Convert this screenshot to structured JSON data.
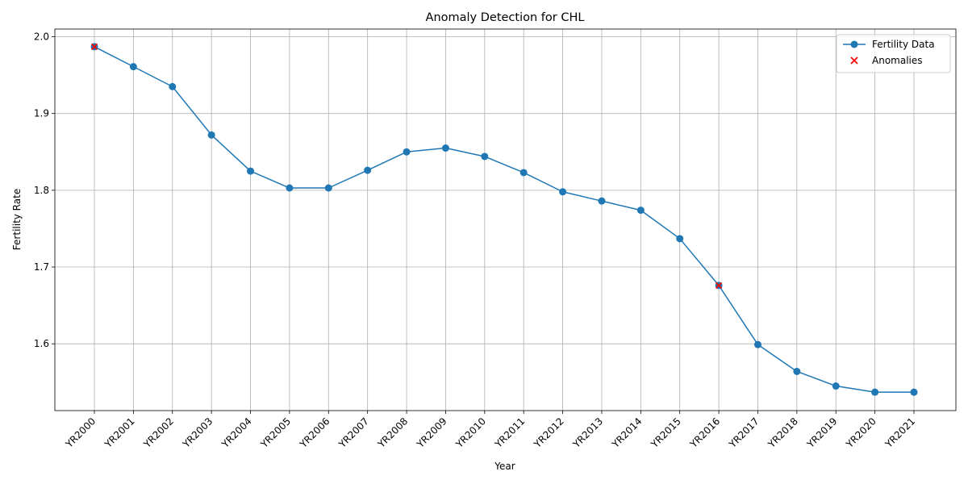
{
  "chart_data": {
    "type": "line",
    "title": "Anomaly Detection for CHL",
    "xlabel": "Year",
    "ylabel": "Fertility Rate",
    "categories": [
      "YR2000",
      "YR2001",
      "YR2002",
      "YR2003",
      "YR2004",
      "YR2005",
      "YR2006",
      "YR2007",
      "YR2008",
      "YR2009",
      "YR2010",
      "YR2011",
      "YR2012",
      "YR2013",
      "YR2014",
      "YR2015",
      "YR2016",
      "YR2017",
      "YR2018",
      "YR2019",
      "YR2020",
      "YR2021"
    ],
    "series": [
      {
        "name": "Fertility Data",
        "color": "#1f77b4",
        "marker": "circle",
        "values": [
          1.987,
          1.961,
          1.935,
          1.872,
          1.825,
          1.803,
          1.803,
          1.826,
          1.85,
          1.855,
          1.844,
          1.823,
          1.798,
          1.786,
          1.774,
          1.737,
          1.676,
          1.599,
          1.564,
          1.545,
          1.537,
          1.537
        ]
      },
      {
        "name": "Anomalies",
        "color": "#ff0000",
        "marker": "x",
        "points": [
          {
            "x": "YR2000",
            "y": 1.987
          },
          {
            "x": "YR2016",
            "y": 1.676
          }
        ]
      }
    ],
    "ylim": [
      1.513,
      2.01
    ],
    "yticks": [
      1.6,
      1.7,
      1.8,
      1.9,
      2.0
    ],
    "ytick_labels": [
      "1.6",
      "1.7",
      "1.8",
      "1.9",
      "2.0"
    ],
    "grid": true,
    "legend": "top-right"
  }
}
